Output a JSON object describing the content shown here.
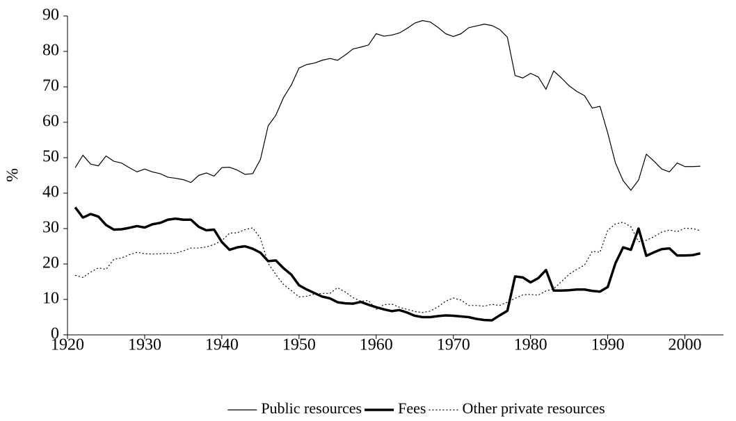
{
  "chart_data": {
    "type": "line",
    "ylabel": "%",
    "x": [
      1921,
      1922,
      1923,
      1924,
      1925,
      1926,
      1927,
      1928,
      1929,
      1930,
      1931,
      1932,
      1933,
      1934,
      1935,
      1936,
      1937,
      1938,
      1939,
      1940,
      1941,
      1942,
      1943,
      1944,
      1945,
      1946,
      1947,
      1948,
      1949,
      1950,
      1951,
      1952,
      1953,
      1954,
      1955,
      1956,
      1957,
      1958,
      1959,
      1960,
      1961,
      1962,
      1963,
      1964,
      1965,
      1966,
      1967,
      1968,
      1969,
      1970,
      1971,
      1972,
      1973,
      1974,
      1975,
      1976,
      1977,
      1978,
      1979,
      1980,
      1981,
      1982,
      1983,
      1984,
      1985,
      1986,
      1987,
      1988,
      1989,
      1990,
      1991,
      1992,
      1993,
      1994,
      1995,
      1996,
      1997,
      1998,
      1999,
      2000,
      2001,
      2002
    ],
    "series": [
      {
        "name": "Public resources",
        "color": "#000000",
        "style": "solid",
        "values": [
          47.2,
          50.7,
          48.2,
          47.7,
          50.5,
          49,
          48.5,
          47.2,
          46,
          46.8,
          46,
          45.5,
          44.5,
          44.2,
          43.8,
          43,
          45,
          45.7,
          44.8,
          47.2,
          47.3,
          46.5,
          45.3,
          45.5,
          49.5,
          59,
          62,
          67,
          70.5,
          75.3,
          76.3,
          76.7,
          77.5,
          78,
          77.5,
          79,
          80.7,
          81.2,
          81.8,
          85,
          84.3,
          84.6,
          85.2,
          86.5,
          88,
          88.7,
          88.3,
          86.8,
          85,
          84.2,
          85,
          86.7,
          87.2,
          87.7,
          87.3,
          86.2,
          84,
          73.2,
          72.5,
          73.8,
          72.8,
          69.3,
          74.5,
          72.5,
          70.3,
          68.7,
          67.5,
          64,
          64.5,
          57,
          48.5,
          43.5,
          40.8,
          43.7,
          51,
          49,
          46.8,
          46,
          48.5,
          47.5,
          47.5,
          47.6
        ]
      },
      {
        "name": "Fees",
        "color": "#000000",
        "style": "bold",
        "values": [
          36,
          33.1,
          34.1,
          33.4,
          31,
          29.7,
          29.8,
          30.2,
          30.7,
          30.3,
          31.2,
          31.6,
          32.5,
          32.8,
          32.5,
          32.5,
          30.5,
          29.5,
          29.7,
          26.2,
          24,
          24.7,
          25,
          24.3,
          23.2,
          20.8,
          21,
          18.8,
          17,
          14,
          12.8,
          11.8,
          10.8,
          10.3,
          9.2,
          8.9,
          8.8,
          9.3,
          8.5,
          7.8,
          7.2,
          6.7,
          7,
          6.3,
          5.4,
          5,
          5,
          5.3,
          5.5,
          5.4,
          5.2,
          5,
          4.5,
          4.2,
          4.1,
          5.5,
          6.8,
          16.5,
          16.2,
          14.8,
          16,
          18.3,
          12.5,
          12.5,
          12.6,
          12.8,
          12.8,
          12.4,
          12.2,
          13.5,
          20.2,
          24.7,
          24,
          30,
          22.3,
          23.3,
          24.2,
          24.4,
          22.4,
          22.4,
          22.5,
          23
        ]
      },
      {
        "name": "Other private resources",
        "color": "#000000",
        "style": "dotted",
        "values": [
          16.8,
          16.2,
          17.7,
          18.9,
          18.5,
          21.3,
          21.7,
          22.6,
          23.3,
          22.9,
          22.8,
          22.9,
          23,
          23,
          23.7,
          24.5,
          24.5,
          24.8,
          25.5,
          26.6,
          28.7,
          28.8,
          29.7,
          30.2,
          27.3,
          20.2,
          17,
          14.2,
          12.5,
          10.7,
          10.9,
          11.5,
          11.7,
          11.7,
          13.3,
          12.1,
          10.5,
          9.5,
          9.7,
          7.2,
          8.5,
          8.7,
          7.8,
          7.2,
          6.6,
          6.3,
          6.7,
          7.9,
          9.5,
          10.4,
          9.8,
          8.3,
          8.3,
          8.1,
          8.6,
          8.3,
          9.2,
          10.3,
          11.3,
          11.4,
          11.2,
          12.4,
          13,
          15,
          17.1,
          18.5,
          19.7,
          23.6,
          23.3,
          29.5,
          31.3,
          31.8,
          30.5,
          26.3,
          26.7,
          27.7,
          29,
          29.6,
          29.1,
          30.1,
          30,
          29.4
        ]
      }
    ],
    "xlim": [
      1920,
      2005
    ],
    "xticks": [
      1920,
      1930,
      1940,
      1950,
      1960,
      1970,
      1980,
      1990,
      2000
    ],
    "ylim": [
      0,
      90
    ],
    "yticks": [
      0,
      10,
      20,
      30,
      40,
      50,
      60,
      70,
      80,
      90
    ],
    "grid": false,
    "legend": "bottom"
  }
}
